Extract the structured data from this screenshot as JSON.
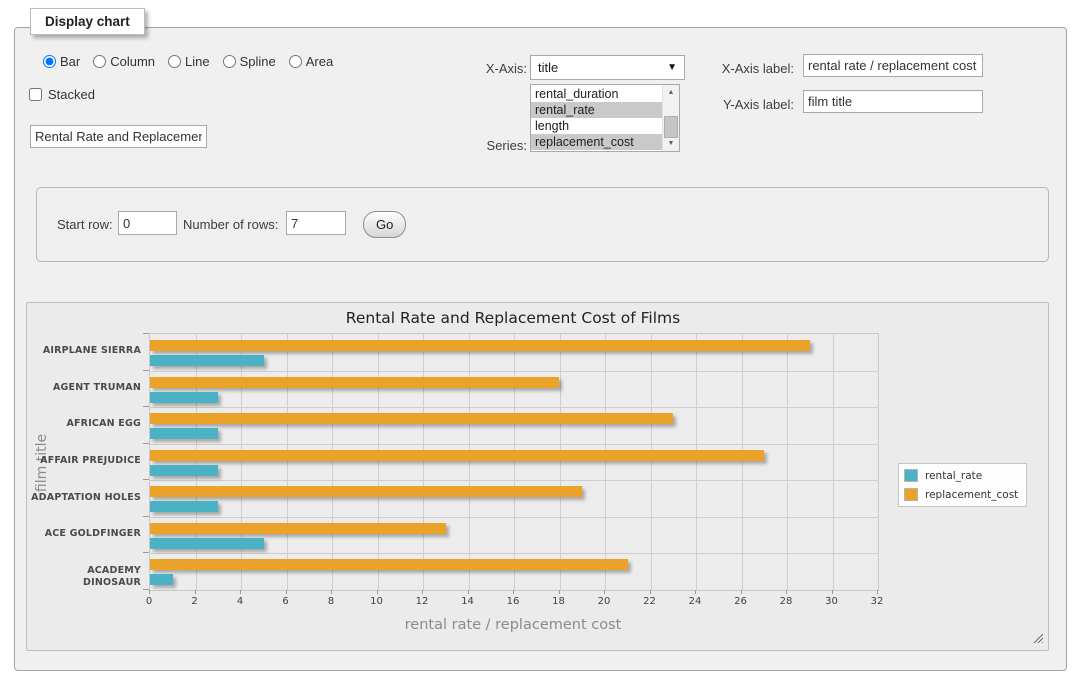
{
  "panel": {
    "legend": "Display chart"
  },
  "chart_type_options": [
    {
      "label": "Bar",
      "selected": true
    },
    {
      "label": "Column",
      "selected": false
    },
    {
      "label": "Line",
      "selected": false
    },
    {
      "label": "Spline",
      "selected": false
    },
    {
      "label": "Area",
      "selected": false
    }
  ],
  "stacked": {
    "label": "Stacked",
    "checked": false
  },
  "title_input": {
    "value": "Rental Rate and Replacement Cost of Films"
  },
  "x_axis": {
    "label": "X-Axis:",
    "selected": "title"
  },
  "series_select": {
    "label": "Series:",
    "options": [
      {
        "label": "rental_duration",
        "selected": false
      },
      {
        "label": "rental_rate",
        "selected": true
      },
      {
        "label": "length",
        "selected": false
      },
      {
        "label": "replacement_cost",
        "selected": true
      }
    ]
  },
  "x_axis_label_field": {
    "label": "X-Axis label:",
    "value": "rental rate / replacement cost"
  },
  "y_axis_label_field": {
    "label": "Y-Axis label:",
    "value": "film title"
  },
  "row_controls": {
    "start_row_label": "Start row:",
    "start_row_value": "0",
    "num_rows_label": "Number of rows:",
    "num_rows_value": "7",
    "go_label": "Go"
  },
  "chart_data": {
    "type": "bar",
    "orientation": "horizontal",
    "title": "Rental Rate and Replacement Cost of Films",
    "xlabel": "rental rate / replacement cost",
    "ylabel": "film title",
    "categories": [
      "AIRPLANE SIERRA",
      "AGENT TRUMAN",
      "AFRICAN EGG",
      "AFFAIR PREJUDICE",
      "ADAPTATION HOLES",
      "ACE GOLDFINGER",
      "ACADEMY DINOSAUR"
    ],
    "series": [
      {
        "name": "rental_rate",
        "color": "#4bb2c5",
        "values": [
          4.99,
          2.99,
          2.99,
          2.99,
          2.99,
          4.99,
          0.99
        ]
      },
      {
        "name": "replacement_cost",
        "color": "#eaa228",
        "values": [
          28.99,
          17.99,
          22.99,
          26.99,
          18.99,
          12.99,
          20.99
        ]
      }
    ],
    "xlim": [
      0,
      32
    ],
    "xtick_step": 2,
    "grid": true,
    "legend_position": "right"
  }
}
